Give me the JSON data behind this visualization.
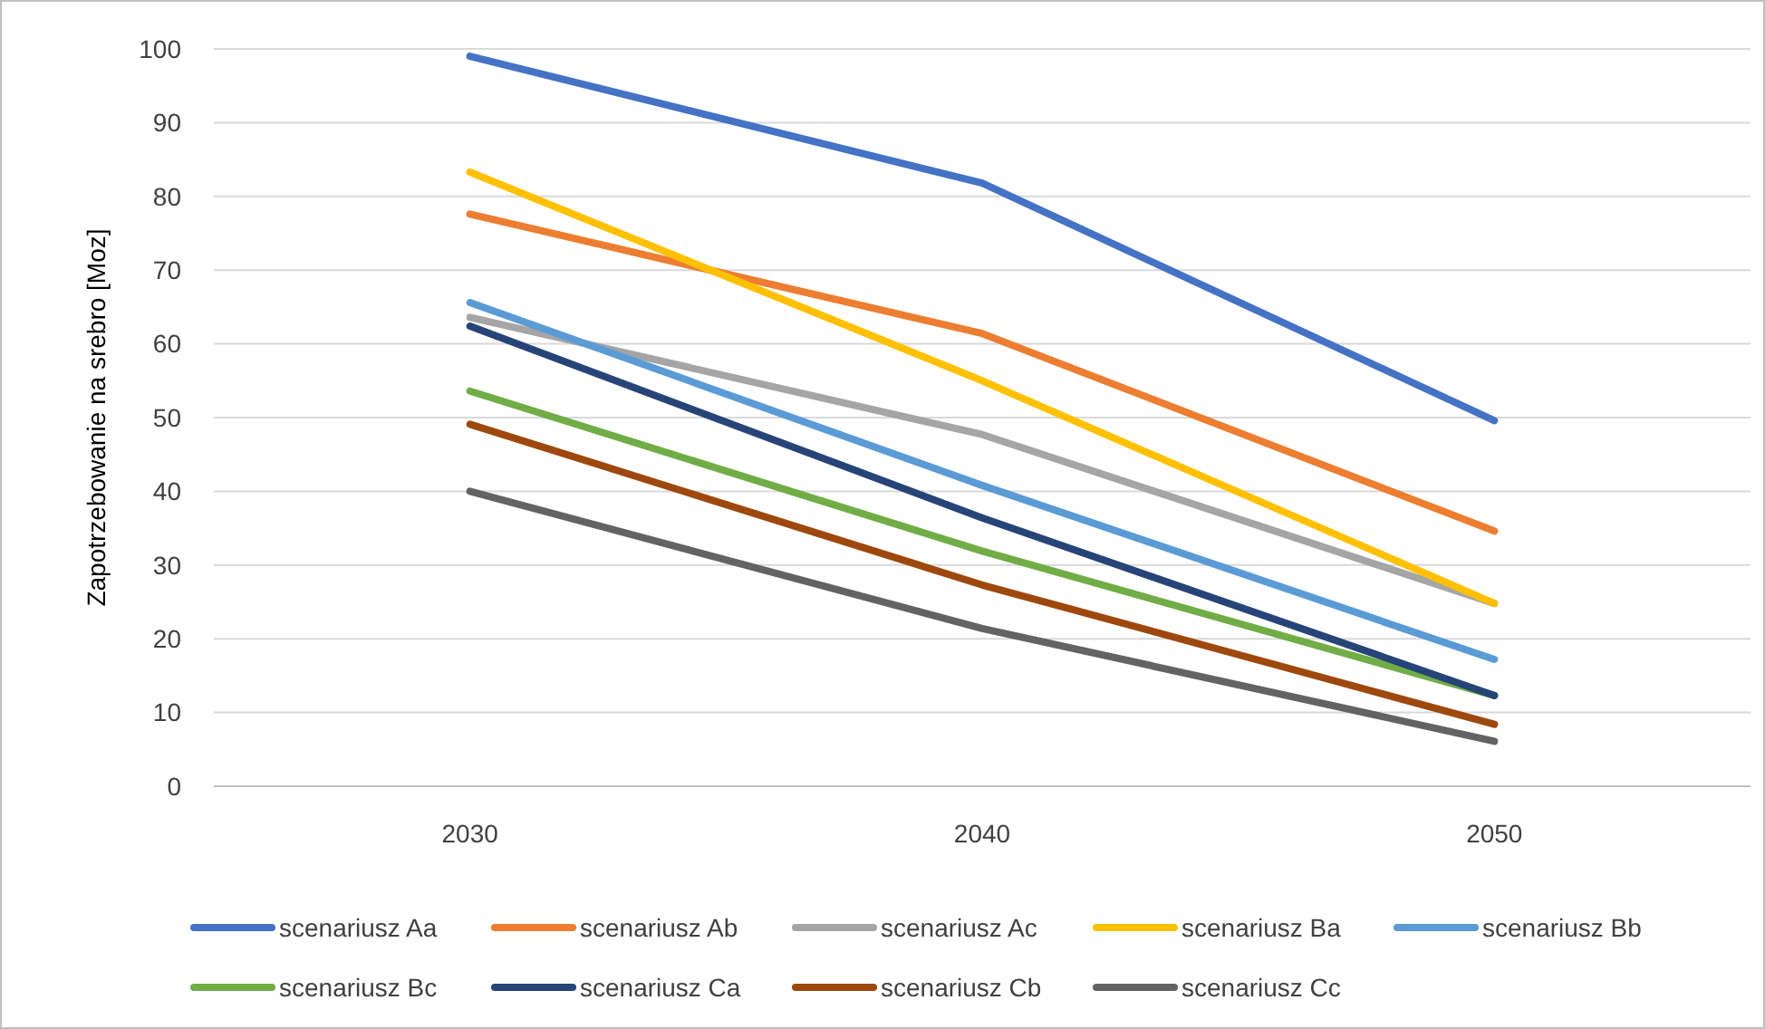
{
  "chart_data": {
    "type": "line",
    "ylabel": "Zapotrzebowanie na srebro [Moz]",
    "categories": [
      "2030",
      "2040",
      "2050"
    ],
    "series": [
      {
        "name": "scenariusz Aa",
        "color": "#4472c4",
        "values": [
          99.0,
          81.8,
          49.6
        ]
      },
      {
        "name": "scenariusz Ab",
        "color": "#ed7d31",
        "values": [
          77.6,
          61.4,
          34.6
        ]
      },
      {
        "name": "scenariusz Ac",
        "color": "#a5a5a5",
        "values": [
          63.6,
          47.7,
          24.8
        ]
      },
      {
        "name": "scenariusz Ba",
        "color": "#ffc000",
        "values": [
          83.3,
          55.0,
          24.8
        ]
      },
      {
        "name": "scenariusz Bb",
        "color": "#5b9bd5",
        "values": [
          65.6,
          40.8,
          17.2
        ]
      },
      {
        "name": "scenariusz Bc",
        "color": "#70ad47",
        "values": [
          53.6,
          31.9,
          12.3
        ]
      },
      {
        "name": "scenariusz Ca",
        "color": "#264478",
        "values": [
          62.4,
          36.4,
          12.3
        ]
      },
      {
        "name": "scenariusz Cb",
        "color": "#9e480e",
        "values": [
          49.1,
          27.3,
          8.4
        ]
      },
      {
        "name": "scenariusz Cc",
        "color": "#636363",
        "values": [
          40.0,
          21.4,
          6.1
        ]
      }
    ],
    "ylim": [
      0,
      100
    ],
    "yticks": [
      0,
      10,
      20,
      30,
      40,
      50,
      60,
      70,
      80,
      90,
      100
    ],
    "grid": "y",
    "legend": "bottom",
    "marker": "none",
    "line_style": "solid"
  }
}
